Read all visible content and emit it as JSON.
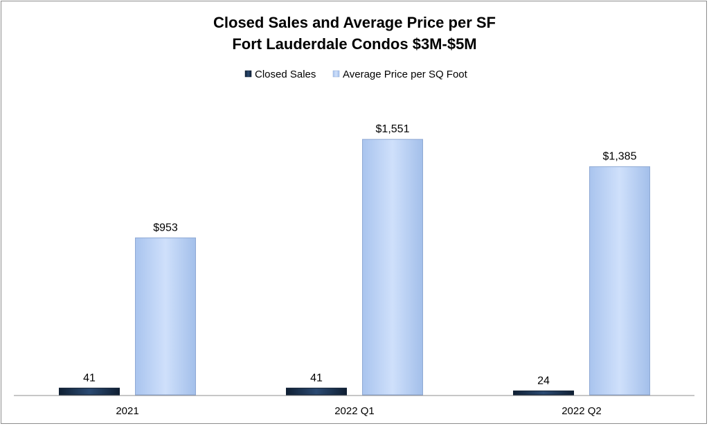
{
  "chart_data": {
    "type": "bar",
    "title": [
      "Closed Sales and Average Price per SF",
      "Fort Lauderdale Condos $3M-$5M"
    ],
    "categories": [
      "2021",
      "2022 Q1",
      "2022 Q2"
    ],
    "series": [
      {
        "name": "Closed Sales",
        "values": [
          41,
          41,
          24
        ],
        "labels": [
          "41",
          "41",
          "24"
        ],
        "color": "#1f3a5c"
      },
      {
        "name": "Average Price per SQ Foot",
        "values": [
          953,
          1551,
          1385
        ],
        "labels": [
          "$953",
          "$1,551",
          "$1,385"
        ],
        "color": "#b8d0f5"
      }
    ],
    "ylim": [
      0,
      1800
    ],
    "legend_position": "top",
    "grid": false
  }
}
